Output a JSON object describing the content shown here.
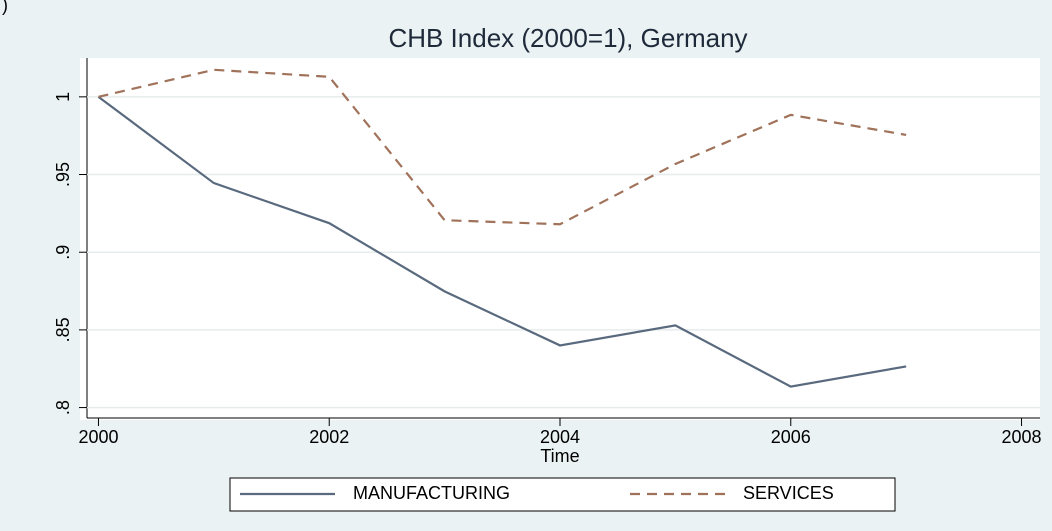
{
  "corner_text": ")",
  "chart_data": {
    "type": "line",
    "title": "CHB Index (2000=1), Germany",
    "x_label": "Time",
    "x": [
      2000,
      2001,
      2002,
      2003,
      2004,
      2005,
      2006,
      2007
    ],
    "series": [
      {
        "name": "MANUFACTURING",
        "color": "#5a6a7e",
        "dash": "solid",
        "values": [
          1,
          0.9445,
          0.9187,
          0.8748,
          0.84,
          0.8529,
          0.8135,
          0.8265
        ]
      },
      {
        "name": "SERVICES",
        "color": "#a0725a",
        "dash": "dashed",
        "values": [
          1,
          1.0174,
          1.0129,
          0.9206,
          0.918,
          0.9568,
          0.9884,
          0.9755
        ]
      }
    ],
    "xlim": [
      1999.84,
      2008.16
    ],
    "xticks": [
      2000,
      2002,
      2004,
      2006,
      2008
    ],
    "ylim": [
      0.792,
      1.025
    ],
    "yticks": [
      {
        "value": 0.8,
        "label": ".8"
      },
      {
        "value": 0.85,
        "label": ".85"
      },
      {
        "value": 0.9,
        "label": ".9"
      },
      {
        "value": 0.95,
        "label": ".95"
      },
      1
    ],
    "grid": true,
    "legend_position": "bottom"
  }
}
